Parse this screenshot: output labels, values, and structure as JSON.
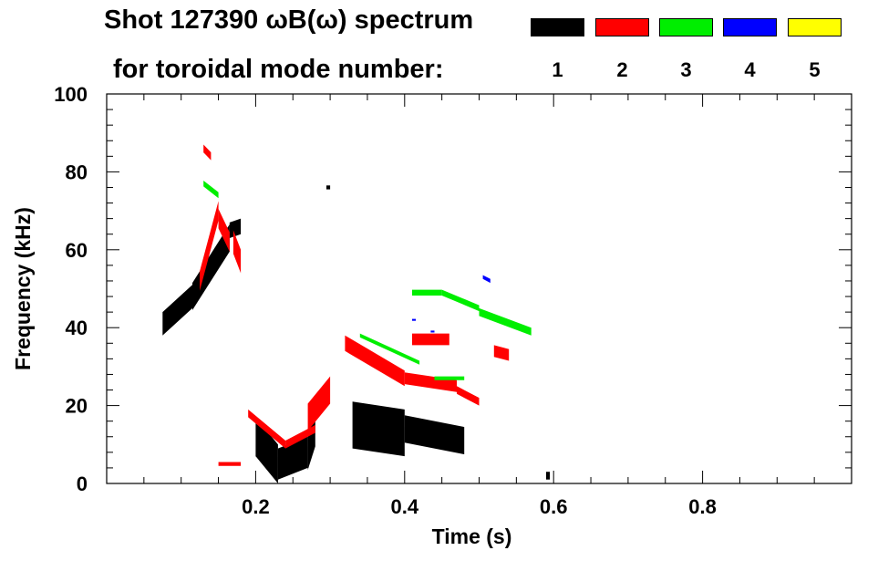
{
  "chart_data": {
    "type": "scatter",
    "title": "Shot 127390 ωB(ω) spectrum",
    "subtitle": "for toroidal mode number:",
    "xlabel": "Time (s)",
    "ylabel": "Frequency (kHz)",
    "xlim": [
      0.0,
      1.0
    ],
    "ylim": [
      0,
      100
    ],
    "xticks": [
      0.2,
      0.4,
      0.6,
      0.8
    ],
    "xtick_labels": [
      "0.2",
      "0.4",
      "0.6",
      "0.8"
    ],
    "yticks": [
      0,
      20,
      40,
      60,
      80,
      100
    ],
    "ytick_labels": [
      "0",
      "20",
      "40",
      "60",
      "80",
      "100"
    ],
    "legend": [
      {
        "label": "1",
        "color": "#000000"
      },
      {
        "label": "2",
        "color": "#ff0000"
      },
      {
        "label": "3",
        "color": "#00ee00"
      },
      {
        "label": "4",
        "color": "#0000ff"
      },
      {
        "label": "5",
        "color": "#ffff00"
      }
    ],
    "series": [
      {
        "name": "1",
        "color": "#000000",
        "segments": [
          {
            "t0": 0.075,
            "t1": 0.115,
            "f0": 41,
            "f1": 48,
            "w": 6
          },
          {
            "t0": 0.115,
            "t1": 0.165,
            "f0": 48,
            "f1": 63,
            "w": 7
          },
          {
            "t0": 0.165,
            "t1": 0.18,
            "f0": 65,
            "f1": 66,
            "w": 4
          },
          {
            "t0": 0.2,
            "t1": 0.23,
            "f0": 12,
            "f1": 5,
            "w": 10
          },
          {
            "t0": 0.23,
            "t1": 0.27,
            "f0": 5,
            "f1": 8,
            "w": 8
          },
          {
            "t0": 0.27,
            "t1": 0.28,
            "f0": 8,
            "f1": 14,
            "w": 9
          },
          {
            "t0": 0.33,
            "t1": 0.4,
            "f0": 15,
            "f1": 13,
            "w": 12
          },
          {
            "t0": 0.4,
            "t1": 0.48,
            "f0": 14,
            "f1": 11,
            "w": 7
          },
          {
            "t0": 0.295,
            "t1": 0.3,
            "f0": 76,
            "f1": 76,
            "w": 1
          },
          {
            "t0": 0.59,
            "t1": 0.595,
            "f0": 2,
            "f1": 2,
            "w": 2
          }
        ]
      },
      {
        "name": "2",
        "color": "#ff0000",
        "segments": [
          {
            "t0": 0.125,
            "t1": 0.15,
            "f0": 52,
            "f1": 70,
            "w": 5
          },
          {
            "t0": 0.15,
            "t1": 0.165,
            "f0": 68,
            "f1": 62,
            "w": 5
          },
          {
            "t0": 0.17,
            "t1": 0.18,
            "f0": 62,
            "f1": 57,
            "w": 6
          },
          {
            "t0": 0.15,
            "t1": 0.18,
            "f0": 5,
            "f1": 5,
            "w": 1
          },
          {
            "t0": 0.19,
            "t1": 0.24,
            "f0": 18,
            "f1": 10,
            "w": 2
          },
          {
            "t0": 0.24,
            "t1": 0.28,
            "f0": 10,
            "f1": 14,
            "w": 2
          },
          {
            "t0": 0.27,
            "t1": 0.3,
            "f0": 17,
            "f1": 24,
            "w": 7
          },
          {
            "t0": 0.32,
            "t1": 0.4,
            "f0": 36,
            "f1": 27,
            "w": 4
          },
          {
            "t0": 0.4,
            "t1": 0.47,
            "f0": 27,
            "f1": 25,
            "w": 3
          },
          {
            "t0": 0.47,
            "t1": 0.5,
            "f0": 24,
            "f1": 21,
            "w": 2
          },
          {
            "t0": 0.41,
            "t1": 0.46,
            "f0": 37,
            "f1": 37,
            "w": 3
          },
          {
            "t0": 0.52,
            "t1": 0.54,
            "f0": 34,
            "f1": 33,
            "w": 3
          },
          {
            "t0": 0.13,
            "t1": 0.14,
            "f0": 86,
            "f1": 84,
            "w": 2
          }
        ]
      },
      {
        "name": "3",
        "color": "#00ee00",
        "segments": [
          {
            "t0": 0.41,
            "t1": 0.45,
            "f0": 49,
            "f1": 49,
            "w": 1.5
          },
          {
            "t0": 0.45,
            "t1": 0.5,
            "f0": 49,
            "f1": 45,
            "w": 1.5
          },
          {
            "t0": 0.5,
            "t1": 0.57,
            "f0": 44,
            "f1": 39,
            "w": 2
          },
          {
            "t0": 0.34,
            "t1": 0.42,
            "f0": 38,
            "f1": 31,
            "w": 1
          },
          {
            "t0": 0.44,
            "t1": 0.48,
            "f0": 27,
            "f1": 27,
            "w": 1
          },
          {
            "t0": 0.13,
            "t1": 0.15,
            "f0": 77,
            "f1": 74,
            "w": 1.5
          }
        ]
      },
      {
        "name": "4",
        "color": "#0000ff",
        "segments": [
          {
            "t0": 0.505,
            "t1": 0.515,
            "f0": 53,
            "f1": 52,
            "w": 1
          },
          {
            "t0": 0.41,
            "t1": 0.415,
            "f0": 42,
            "f1": 42,
            "w": 0.5
          },
          {
            "t0": 0.435,
            "t1": 0.44,
            "f0": 39,
            "f1": 39,
            "w": 0.5
          }
        ]
      },
      {
        "name": "5",
        "color": "#ffff00",
        "segments": []
      }
    ]
  }
}
